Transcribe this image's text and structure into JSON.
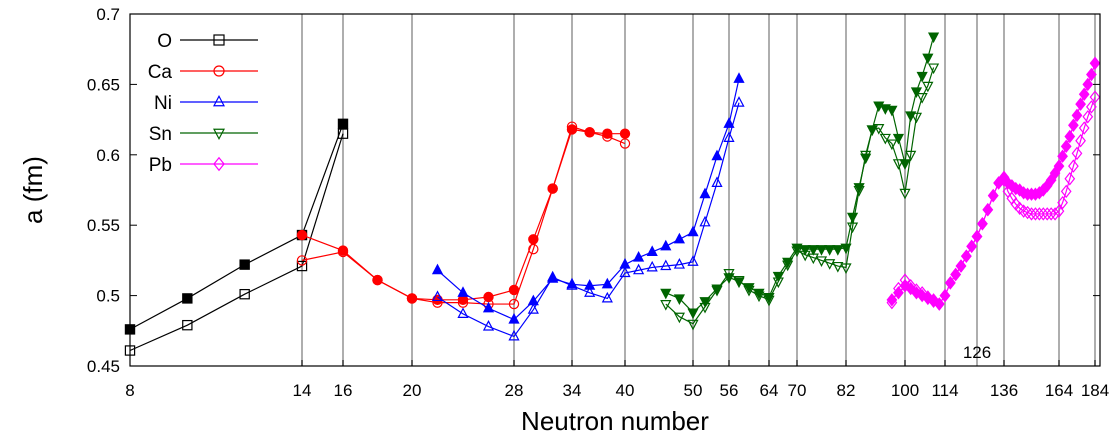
{
  "chart_data": {
    "type": "line",
    "xlabel": "Neutron number",
    "ylabel": "a (fm)",
    "ylim": [
      0.45,
      0.7
    ],
    "ytick_labels": [
      "0.45",
      "0.5",
      "0.55",
      "0.6",
      "0.65",
      "0.7"
    ],
    "x_scale": "piecewise (magic-number segments, N=8 to 184)",
    "x_tick_labels": [
      {
        "n": 8,
        "label": "8"
      },
      {
        "n": 14,
        "label": "14"
      },
      {
        "n": 16,
        "label": "16"
      },
      {
        "n": 20,
        "label": "20"
      },
      {
        "n": 28,
        "label": "28"
      },
      {
        "n": 34,
        "label": "34"
      },
      {
        "n": 40,
        "label": "40"
      },
      {
        "n": 50,
        "label": "50"
      },
      {
        "n": 56,
        "label": "56"
      },
      {
        "n": 64,
        "label": "64"
      },
      {
        "n": 70,
        "label": "70"
      },
      {
        "n": 82,
        "label": "82"
      },
      {
        "n": 100,
        "label": "100"
      },
      {
        "n": 114,
        "label": "114"
      },
      {
        "n": 136,
        "label": "136"
      },
      {
        "n": 164,
        "label": "164"
      },
      {
        "n": 184,
        "label": "184"
      }
    ],
    "vertical_lines": [
      14,
      16,
      20,
      28,
      34,
      40,
      50,
      56,
      64,
      70,
      82,
      100,
      114,
      126,
      136,
      164,
      184
    ],
    "annotations": [
      {
        "text": "126",
        "x": 126,
        "y": 0.46
      }
    ],
    "legend": {
      "position": "top-left"
    },
    "series": [
      {
        "name": "O",
        "color": "#000000",
        "marker": "square",
        "variant": "filled",
        "x": [
          8,
          10,
          12,
          14,
          16
        ],
        "y": [
          0.476,
          0.498,
          0.522,
          0.543,
          0.622
        ]
      },
      {
        "name": "O",
        "color": "#000000",
        "marker": "square",
        "variant": "open",
        "x": [
          8,
          10,
          12,
          14,
          16
        ],
        "y": [
          0.461,
          0.479,
          0.501,
          0.521,
          0.615
        ]
      },
      {
        "name": "Ca",
        "color": "#ff0000",
        "marker": "circle",
        "variant": "filled",
        "x": [
          14,
          16,
          18,
          20,
          22,
          24,
          26,
          28,
          30,
          32,
          34,
          36,
          38,
          40
        ],
        "y": [
          0.543,
          0.532,
          0.511,
          0.498,
          0.497,
          0.497,
          0.499,
          0.504,
          0.54,
          0.576,
          0.618,
          0.616,
          0.615,
          0.615
        ]
      },
      {
        "name": "Ca",
        "color": "#ff0000",
        "marker": "circle",
        "variant": "open",
        "x": [
          14,
          16,
          18,
          20,
          22,
          24,
          26,
          28,
          30,
          32,
          34,
          36,
          38,
          40
        ],
        "y": [
          0.525,
          0.531,
          0.511,
          0.498,
          0.495,
          0.495,
          0.494,
          0.494,
          0.533,
          0.576,
          0.62,
          0.616,
          0.613,
          0.608
        ]
      },
      {
        "name": "Ni",
        "color": "#0000ff",
        "marker": "triangle-up",
        "variant": "filled",
        "x": [
          22,
          24,
          26,
          28,
          30,
          32,
          34,
          36,
          38,
          40,
          42,
          44,
          46,
          48,
          50,
          52,
          54,
          56,
          58
        ],
        "y": [
          0.518,
          0.502,
          0.491,
          0.483,
          0.496,
          0.512,
          0.508,
          0.507,
          0.508,
          0.522,
          0.527,
          0.531,
          0.535,
          0.54,
          0.545,
          0.572,
          0.599,
          0.622,
          0.654
        ]
      },
      {
        "name": "Ni",
        "color": "#0000ff",
        "marker": "triangle-up",
        "variant": "open",
        "x": [
          22,
          24,
          26,
          28,
          30,
          32,
          34,
          36,
          38,
          40,
          42,
          44,
          46,
          48,
          50,
          52,
          54,
          56,
          58
        ],
        "y": [
          0.499,
          0.487,
          0.478,
          0.471,
          0.49,
          0.513,
          0.507,
          0.502,
          0.498,
          0.516,
          0.518,
          0.52,
          0.521,
          0.522,
          0.524,
          0.552,
          0.58,
          0.612,
          0.637
        ]
      },
      {
        "name": "Sn",
        "color": "#006400",
        "marker": "triangle-down",
        "variant": "filled",
        "x": [
          46,
          48,
          50,
          52,
          54,
          56,
          58,
          60,
          62,
          64,
          66,
          68,
          70,
          72,
          74,
          76,
          78,
          80,
          82,
          84,
          86,
          88,
          90,
          92,
          94,
          96,
          98,
          100,
          102,
          104,
          106,
          108,
          110
        ],
        "y": [
          0.502,
          0.498,
          0.488,
          0.496,
          0.505,
          0.513,
          0.51,
          0.506,
          0.502,
          0.499,
          0.514,
          0.524,
          0.534,
          0.533,
          0.533,
          0.533,
          0.533,
          0.533,
          0.534,
          0.556,
          0.577,
          0.598,
          0.618,
          0.635,
          0.633,
          0.632,
          0.612,
          0.594,
          0.628,
          0.645,
          0.656,
          0.669,
          0.684
        ]
      },
      {
        "name": "Sn",
        "color": "#006400",
        "marker": "triangle-down",
        "variant": "open",
        "x": [
          46,
          48,
          50,
          52,
          54,
          56,
          58,
          60,
          62,
          64,
          66,
          68,
          70,
          72,
          74,
          76,
          78,
          80,
          82,
          84,
          86,
          88,
          90,
          92,
          94,
          96,
          98,
          100,
          102,
          104,
          106,
          108,
          110
        ],
        "y": [
          0.494,
          0.485,
          0.48,
          0.492,
          0.504,
          0.516,
          0.511,
          0.504,
          0.5,
          0.497,
          0.51,
          0.522,
          0.532,
          0.529,
          0.527,
          0.525,
          0.523,
          0.521,
          0.52,
          0.549,
          0.575,
          0.6,
          0.618,
          0.619,
          0.612,
          0.608,
          0.594,
          0.573,
          0.6,
          0.627,
          0.641,
          0.649,
          0.662
        ]
      },
      {
        "name": "Pb",
        "color": "#ff00ff",
        "marker": "diamond",
        "variant": "filled",
        "x": [
          96,
          98,
          100,
          102,
          104,
          106,
          108,
          110,
          112,
          114,
          116,
          118,
          120,
          122,
          124,
          126,
          128,
          130,
          132,
          134,
          136,
          138,
          140,
          142,
          144,
          146,
          148,
          150,
          152,
          154,
          156,
          158,
          160,
          162,
          164,
          166,
          168,
          170,
          172,
          174,
          176,
          178,
          180,
          182,
          184
        ],
        "y": [
          0.497,
          0.502,
          0.507,
          0.505,
          0.502,
          0.5,
          0.498,
          0.496,
          0.494,
          0.5,
          0.509,
          0.515,
          0.521,
          0.528,
          0.535,
          0.542,
          0.551,
          0.561,
          0.571,
          0.58,
          0.584,
          0.58,
          0.578,
          0.576,
          0.575,
          0.573,
          0.572,
          0.572,
          0.572,
          0.573,
          0.575,
          0.578,
          0.582,
          0.587,
          0.592,
          0.599,
          0.606,
          0.613,
          0.621,
          0.628,
          0.636,
          0.643,
          0.65,
          0.657,
          0.665
        ]
      },
      {
        "name": "Pb",
        "color": "#ff00ff",
        "marker": "diamond",
        "variant": "open",
        "x": [
          96,
          98,
          100,
          102,
          104,
          106,
          108,
          110,
          112,
          114,
          116,
          118,
          120,
          122,
          124,
          126,
          128,
          130,
          132,
          134,
          136,
          138,
          140,
          142,
          144,
          146,
          148,
          150,
          152,
          154,
          156,
          158,
          160,
          162,
          164,
          166,
          168,
          170,
          172,
          174,
          176,
          178,
          180,
          182,
          184
        ],
        "y": [
          0.495,
          0.505,
          0.511,
          0.507,
          0.504,
          0.502,
          0.499,
          0.497,
          0.494,
          0.5,
          0.509,
          0.515,
          0.521,
          0.528,
          0.535,
          0.542,
          0.551,
          0.561,
          0.571,
          0.58,
          0.582,
          0.574,
          0.569,
          0.565,
          0.562,
          0.56,
          0.559,
          0.558,
          0.558,
          0.558,
          0.558,
          0.558,
          0.558,
          0.558,
          0.56,
          0.566,
          0.574,
          0.583,
          0.592,
          0.601,
          0.61,
          0.619,
          0.627,
          0.634,
          0.641
        ]
      }
    ]
  }
}
